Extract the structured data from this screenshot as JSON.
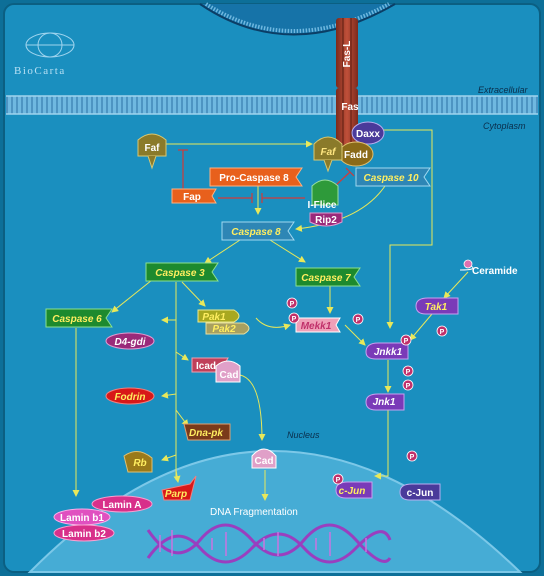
{
  "brand": {
    "logo_text": "BioCarta"
  },
  "regions": {
    "extracellular": "Extracellular",
    "cytoplasm": "Cytoplasm",
    "nucleus": "Nucleus"
  },
  "nodes": {
    "fas_l": "Fas-L",
    "fas": "Fas",
    "daxx": "Daxx",
    "fadd": "Fadd",
    "faf_left": "Faf",
    "faf_right": "Faf",
    "pro_caspase8": "Pro-Caspase 8",
    "fap": "Fap",
    "i_flice": "I-Flice",
    "rip2": "Rip2",
    "caspase10": "Caspase 10",
    "caspase8": "Caspase 8",
    "caspase3": "Caspase 3",
    "caspase7": "Caspase 7",
    "caspase6": "Caspase 6",
    "ceramide": "Ceramide",
    "tak1": "Tak1",
    "pak1": "Pak1",
    "pak2": "Pak2",
    "mekk1": "Mekk1",
    "jnkk1": "Jnkk1",
    "jnk1": "Jnk1",
    "d4_gdi": "D4-gdi",
    "icad": "Icad",
    "cad_cyto": "Cad",
    "fodrin": "Fodrin",
    "dna_pk": "Dna-pk",
    "cad_nuc": "Cad",
    "rb": "Rb",
    "parp": "Parp",
    "lamin_a": "Lamin A",
    "lamin_b1": "Lamin b1",
    "lamin_b2": "Lamin b2",
    "c_jun_p": "c-Jun",
    "c_jun": "c-Jun",
    "dna_fragmentation": "DNA Fragmentation"
  },
  "phospho_label": "P",
  "colors": {
    "background": "#0f87b6",
    "cytoplasm": "#1590bd",
    "membrane": "#3a9fd0",
    "nucleus": "#43a9d2",
    "arrow": "#e8e85a",
    "inhibit": "#d23a3a",
    "caspase_green": "#1d8a2e",
    "caspase_blue": "#2e86b5",
    "pro_caspase": "#e8601c",
    "purple": "#7a3ab8",
    "fas": "#a63e2a"
  }
}
